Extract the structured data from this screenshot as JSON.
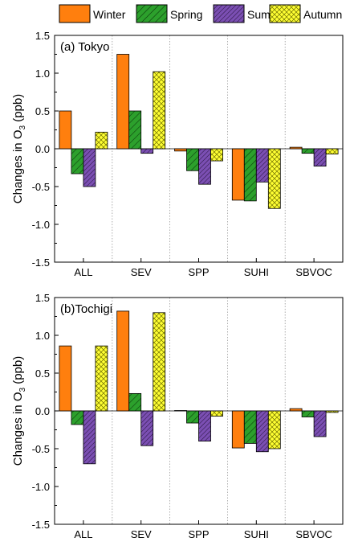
{
  "figure": {
    "legend": [
      {
        "name": "Winter",
        "color": "#ff7f0e",
        "pattern": "solid"
      },
      {
        "name": "Spring",
        "color": "#2ca02c",
        "pattern": "diagonal-hatch"
      },
      {
        "name": "Summer",
        "color": "#7b4fb3",
        "pattern": "dense-diagonal-hatch"
      },
      {
        "name": "Autumn",
        "color": "#ffff33",
        "pattern": "crosshatch"
      }
    ]
  },
  "chart_data": [
    {
      "type": "bar",
      "panel_label": "(a) Tokyo",
      "ylabel": "Changes in O3 (ppb)",
      "ylabel_main": "Changes in O",
      "ylabel_sub": "3",
      "ylabel_tail": " (ppb)",
      "ylim": [
        -1.5,
        1.5
      ],
      "yticks": [
        "1.5",
        "1.0",
        "0.5",
        "0.0",
        "-0.5",
        "-1.0",
        "-1.5"
      ],
      "categories": [
        "ALL",
        "SEV",
        "SPP",
        "SUHI",
        "SBVOC"
      ],
      "series": [
        {
          "name": "Winter",
          "values": [
            0.5,
            1.25,
            -0.03,
            -0.68,
            0.02
          ]
        },
        {
          "name": "Spring",
          "values": [
            -0.33,
            0.5,
            -0.29,
            -0.69,
            -0.06
          ]
        },
        {
          "name": "Summer",
          "values": [
            -0.5,
            -0.06,
            -0.47,
            -0.44,
            -0.23
          ]
        },
        {
          "name": "Autumn",
          "values": [
            0.22,
            1.02,
            -0.16,
            -0.79,
            -0.07
          ]
        }
      ]
    },
    {
      "type": "bar",
      "panel_label": "(b)Tochigi",
      "ylabel": "Changes in O3 (ppb)",
      "ylabel_main": "Changes in O",
      "ylabel_sub": "3",
      "ylabel_tail": " (ppb)",
      "ylim": [
        -1.5,
        1.5
      ],
      "yticks": [
        "1.5",
        "1.0",
        "0.5",
        "0.0",
        "-0.5",
        "-1.0",
        "-1.5"
      ],
      "categories": [
        "ALL",
        "SEV",
        "SPP",
        "SUHI",
        "SBVOC"
      ],
      "series": [
        {
          "name": "Winter",
          "values": [
            0.86,
            1.32,
            0.005,
            -0.49,
            0.03
          ]
        },
        {
          "name": "Spring",
          "values": [
            -0.18,
            0.23,
            -0.16,
            -0.43,
            -0.08
          ]
        },
        {
          "name": "Summer",
          "values": [
            -0.7,
            -0.46,
            -0.4,
            -0.54,
            -0.34
          ]
        },
        {
          "name": "Autumn",
          "values": [
            0.86,
            1.3,
            -0.07,
            -0.5,
            -0.02
          ]
        }
      ]
    }
  ]
}
